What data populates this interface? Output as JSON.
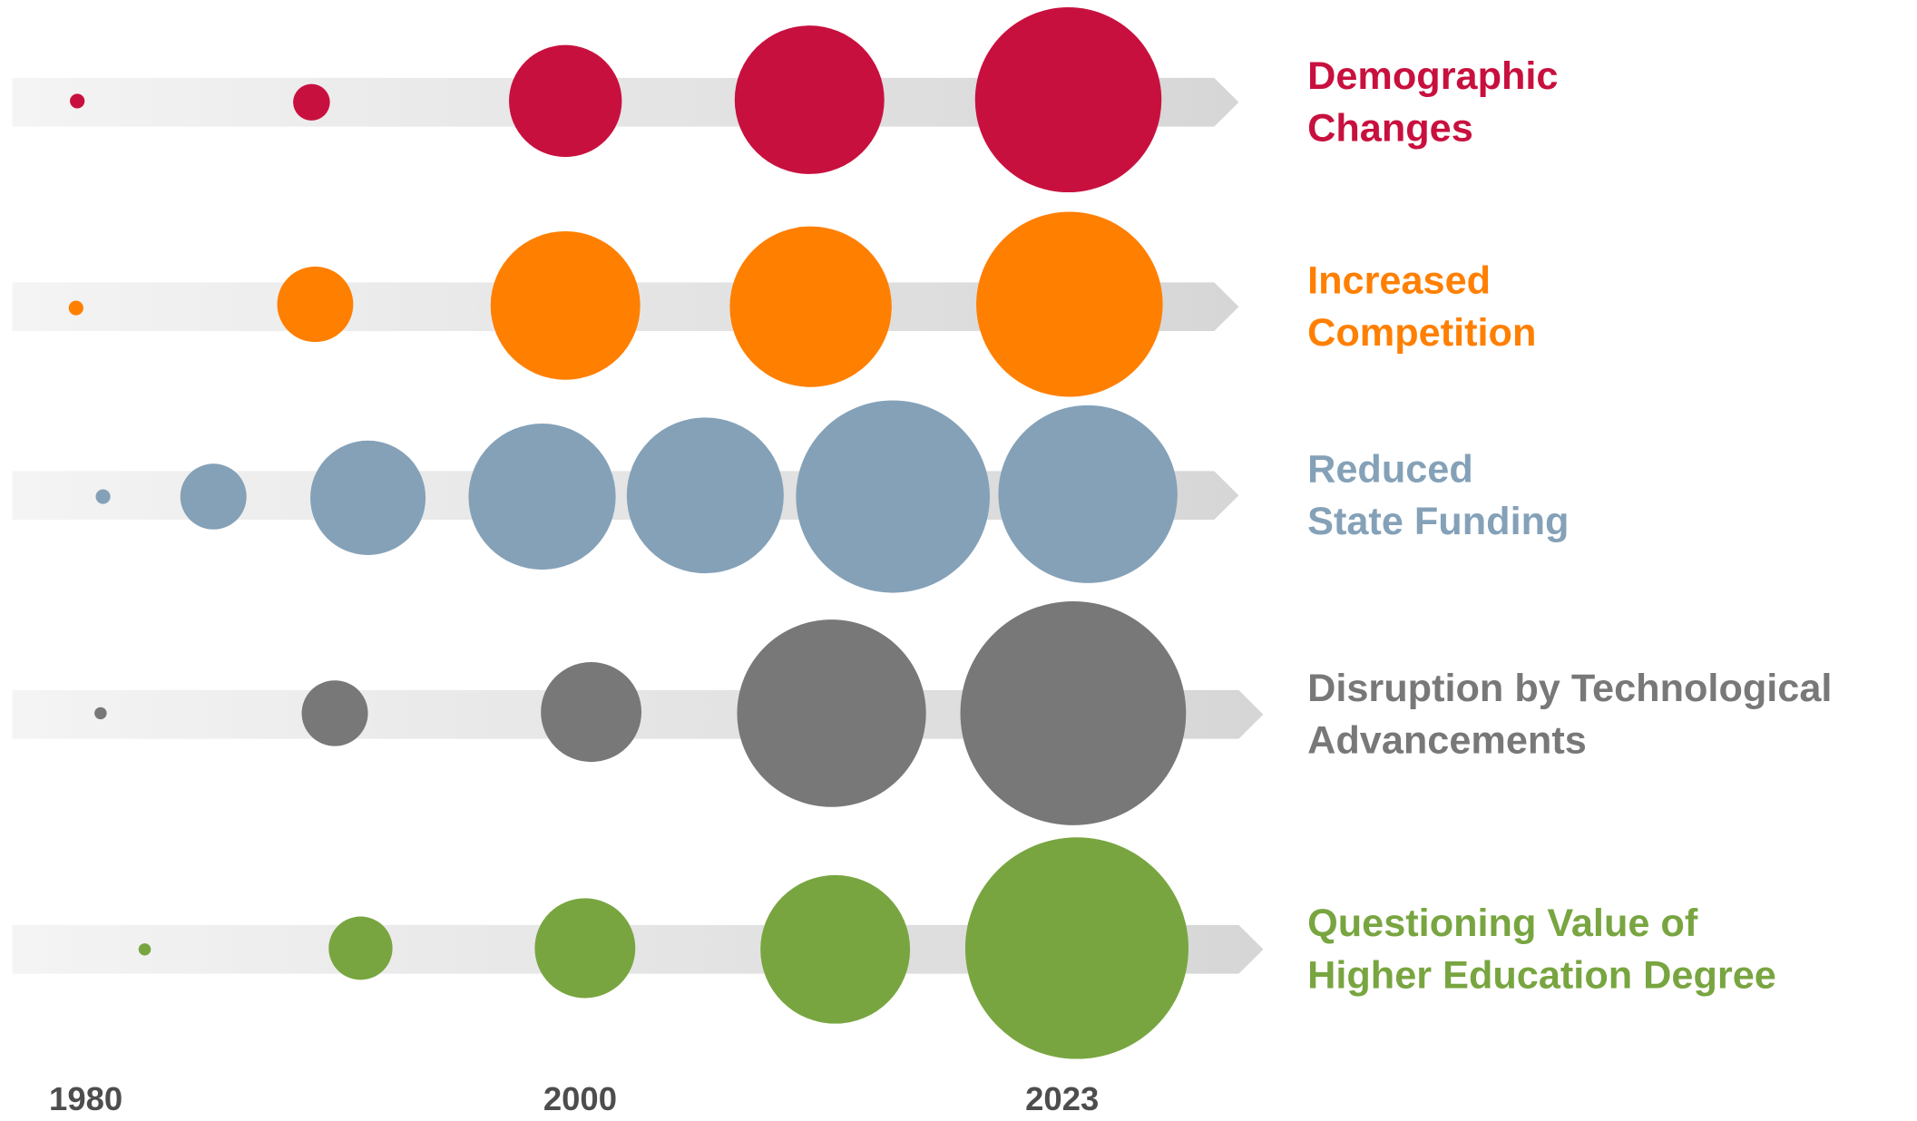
{
  "rows": [
    {
      "lines": [
        "Demographic",
        "Changes"
      ],
      "color": "#c8103e"
    },
    {
      "lines": [
        "Increased",
        "Competition"
      ],
      "color": "#ff7f00"
    },
    {
      "lines": [
        "Reduced",
        "State Funding"
      ],
      "color": "#84a1b8"
    },
    {
      "lines": [
        "Disruption by Technological",
        "Advancements"
      ],
      "color": "#787878"
    },
    {
      "lines": [
        "Questioning Value of",
        "Higher Education Degree"
      ],
      "color": "#78a540"
    }
  ],
  "years": [
    "1980",
    "2000",
    "2023"
  ]
}
